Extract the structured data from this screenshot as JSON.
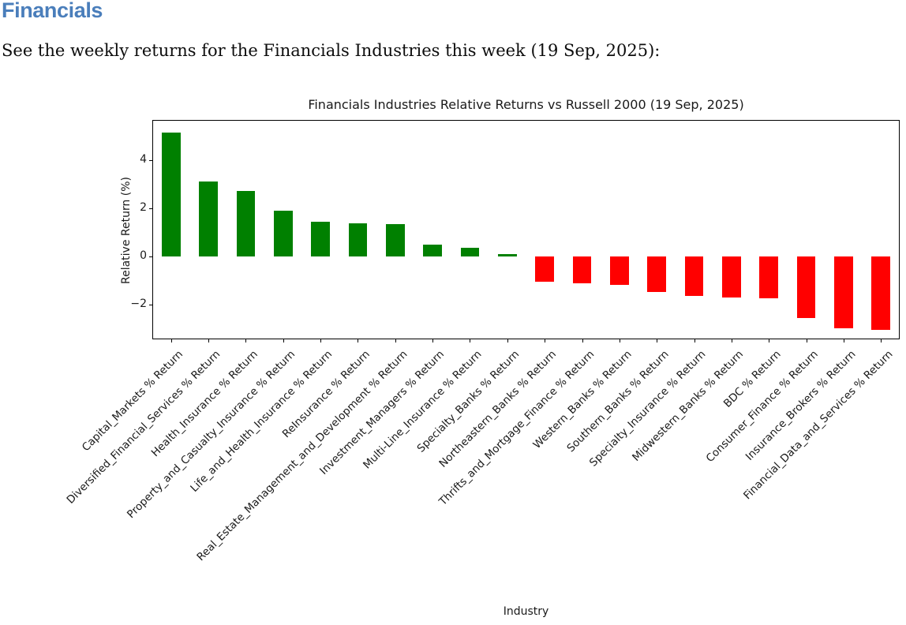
{
  "page": {
    "heading": "Financials",
    "intro": "See the weekly returns for the Financials Industries this week (19 Sep, 2025):"
  },
  "theme": {
    "heading_color": "#4a7ebb",
    "chart_text_color": "#1a1a1a",
    "positive_bar_color": "#008000",
    "negative_bar_color": "#ff0000"
  },
  "chart_data": {
    "type": "bar",
    "title": "Financials Industries Relative Returns vs Russell 2000 (19 Sep, 2025)",
    "xlabel": "Industry",
    "ylabel": "Relative Return (%)",
    "ylim": [
      -3.45,
      5.66
    ],
    "yticks": [
      4,
      2,
      0,
      -2
    ],
    "grid": false,
    "legend_position": "none",
    "x_tick_rotation_deg": 45,
    "categories": [
      "Capital_Markets % Return",
      "Diversified_Financial_Services % Return",
      "Health_Insurance % Return",
      "Property_and_Casualty_Insurance % Return",
      "Life_and_Health_Insurance % Return",
      "ReInsurance % Return",
      "Real_Estate_Management_and_Development % Return",
      "Investment_Managers % Return",
      "Multi-Line_Insurance % Return",
      "Specialty_Banks % Return",
      "Northeastern_Banks % Return",
      "Thrifts_and_Mortgage_Finance % Return",
      "Western_Banks % Return",
      "Southern_Banks % Return",
      "Specialty_Insurance % Return",
      "Midwestern_Banks % Return",
      "BDC % Return",
      "Consumer_Finance % Return",
      "Insurance_Brokers % Return",
      "Financial_Data_and_Services % Return"
    ],
    "values": [
      5.15,
      3.1,
      2.7,
      1.9,
      1.42,
      1.36,
      1.35,
      0.48,
      0.36,
      0.08,
      -1.05,
      -1.12,
      -1.18,
      -1.5,
      -1.65,
      -1.7,
      -1.75,
      -2.55,
      -3.0,
      -3.05
    ]
  }
}
